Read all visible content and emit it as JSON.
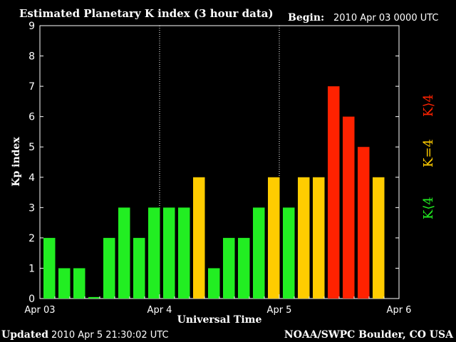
{
  "chart_data": {
    "type": "bar",
    "title": "Estimated Planetary K index (3 hour data)",
    "begin_label": "Begin:",
    "begin_value": "2010 Apr 03 0000 UTC",
    "xlabel": "Universal Time",
    "ylabel": "Kp index",
    "ylim": [
      0,
      9
    ],
    "yticks": [
      "0",
      "1",
      "2",
      "3",
      "4",
      "5",
      "6",
      "7",
      "8",
      "9"
    ],
    "xticks": [
      "Apr 03",
      "Apr 4",
      "Apr 5",
      "Apr 6"
    ],
    "day_separators": [
      "Apr 4",
      "Apr 5"
    ],
    "values": [
      2,
      1,
      1,
      0.05,
      2,
      3,
      2,
      3,
      3,
      3,
      4,
      1,
      2,
      2,
      3,
      4,
      3,
      4,
      4,
      7,
      6,
      5,
      4
    ],
    "levels": [
      "lt4",
      "lt4",
      "lt4",
      "lt4",
      "lt4",
      "lt4",
      "lt4",
      "lt4",
      "lt4",
      "lt4",
      "eq4",
      "lt4",
      "lt4",
      "lt4",
      "lt4",
      "eq4",
      "lt4",
      "eq4",
      "eq4",
      "gt4",
      "gt4",
      "gt4",
      "eq4"
    ],
    "legend": [
      {
        "label": "K⟨4",
        "color": "#22ee22"
      },
      {
        "label": "K=4",
        "color": "#ffcc00"
      },
      {
        "label": "K⟩4",
        "color": "#ff2200"
      }
    ],
    "colors": {
      "lt4": "#22ee22",
      "eq4": "#ffcc00",
      "gt4": "#ff2200",
      "axis": "#ffffff",
      "background": "#000000"
    },
    "grid": false
  },
  "footer": {
    "updated_label": "Updated",
    "updated_value": "2010 Apr  5 21:30:02 UTC",
    "credit": "NOAA/SWPC Boulder, CO USA"
  }
}
